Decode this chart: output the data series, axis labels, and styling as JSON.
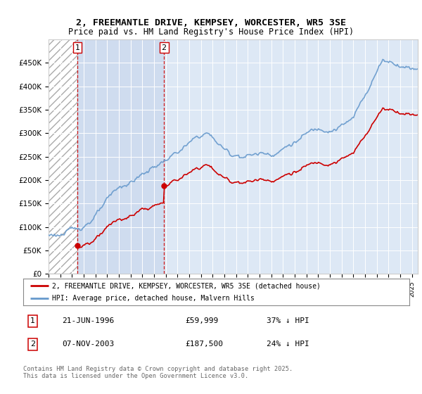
{
  "title1": "2, FREEMANTLE DRIVE, KEMPSEY, WORCESTER, WR5 3SE",
  "title2": "Price paid vs. HM Land Registry's House Price Index (HPI)",
  "legend_label_red": "2, FREEMANTLE DRIVE, KEMPSEY, WORCESTER, WR5 3SE (detached house)",
  "legend_label_blue": "HPI: Average price, detached house, Malvern Hills",
  "annotation1_label": "1",
  "annotation1_date": "21-JUN-1996",
  "annotation1_price": "£59,999",
  "annotation1_hpi": "37% ↓ HPI",
  "annotation2_label": "2",
  "annotation2_date": "07-NOV-2003",
  "annotation2_price": "£187,500",
  "annotation2_hpi": "24% ↓ HPI",
  "footer": "Contains HM Land Registry data © Crown copyright and database right 2025.\nThis data is licensed under the Open Government Licence v3.0.",
  "red_color": "#cc0000",
  "blue_color": "#6699cc",
  "bg_color": "#dde8f5",
  "ylim": [
    0,
    500000
  ],
  "yticks": [
    0,
    50000,
    100000,
    150000,
    200000,
    250000,
    300000,
    350000,
    400000,
    450000
  ],
  "xlim_start": 1994.0,
  "xlim_end": 2025.5,
  "purchase1_x": 1996.47,
  "purchase1_y": 59999,
  "purchase2_x": 2003.85,
  "purchase2_y": 187500
}
